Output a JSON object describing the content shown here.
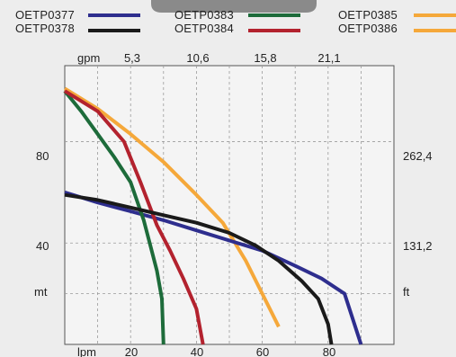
{
  "chart_data": {
    "type": "line",
    "series": [
      {
        "name": "OETP0377",
        "color": "#2e2e8e",
        "x": [
          0,
          10,
          20,
          30,
          40,
          50,
          60,
          70,
          78,
          85,
          90
        ],
        "y": [
          60,
          56,
          52.5,
          49,
          45,
          41,
          37,
          31,
          26,
          20,
          0
        ]
      },
      {
        "name": "OETP0378",
        "color": "#1a1a1a",
        "x": [
          0,
          10,
          20,
          30,
          40,
          50,
          58,
          65,
          72,
          77,
          80,
          81
        ],
        "y": [
          59,
          57,
          54,
          51,
          48,
          44,
          39,
          33,
          25,
          18,
          8,
          0
        ]
      },
      {
        "name": "OETP0383",
        "color": "#1d6b3a",
        "x": [
          0,
          5,
          10,
          15,
          20,
          24,
          26,
          28,
          29.5,
          30
        ],
        "y": [
          100,
          92,
          83,
          74,
          64,
          49,
          39,
          29,
          18,
          0
        ]
      },
      {
        "name": "OETP0384",
        "color": "#b3222e",
        "x": [
          0,
          10,
          18,
          23,
          28,
          32,
          36,
          40,
          42
        ],
        "y": [
          100,
          92,
          80,
          64,
          47,
          37,
          26,
          14,
          0
        ]
      },
      {
        "name": "OETP0385",
        "color": "#f5a83a",
        "x": [
          0,
          10,
          20,
          30,
          40,
          48,
          55,
          60,
          65
        ],
        "y": [
          101,
          93,
          83,
          72,
          59,
          48,
          33,
          20,
          7
        ]
      },
      {
        "name": "OETP0386",
        "color": "#f5a83a",
        "x": [],
        "y": []
      }
    ],
    "xlabel": "lpm",
    "ylabel": "mt",
    "x_ticks": [
      "20",
      "40",
      "60",
      "80"
    ],
    "y_ticks": [
      "40",
      "80"
    ],
    "top_axis": {
      "label": "gpm",
      "ticks": [
        "5,3",
        "10,6",
        "15,8",
        "21,1"
      ]
    },
    "right_axis": {
      "label": "ft",
      "ticks": [
        "131,2",
        "262,4"
      ]
    },
    "xlim": [
      0,
      100
    ],
    "ylim": [
      0,
      110
    ],
    "grid": true,
    "legend_position": "top"
  }
}
